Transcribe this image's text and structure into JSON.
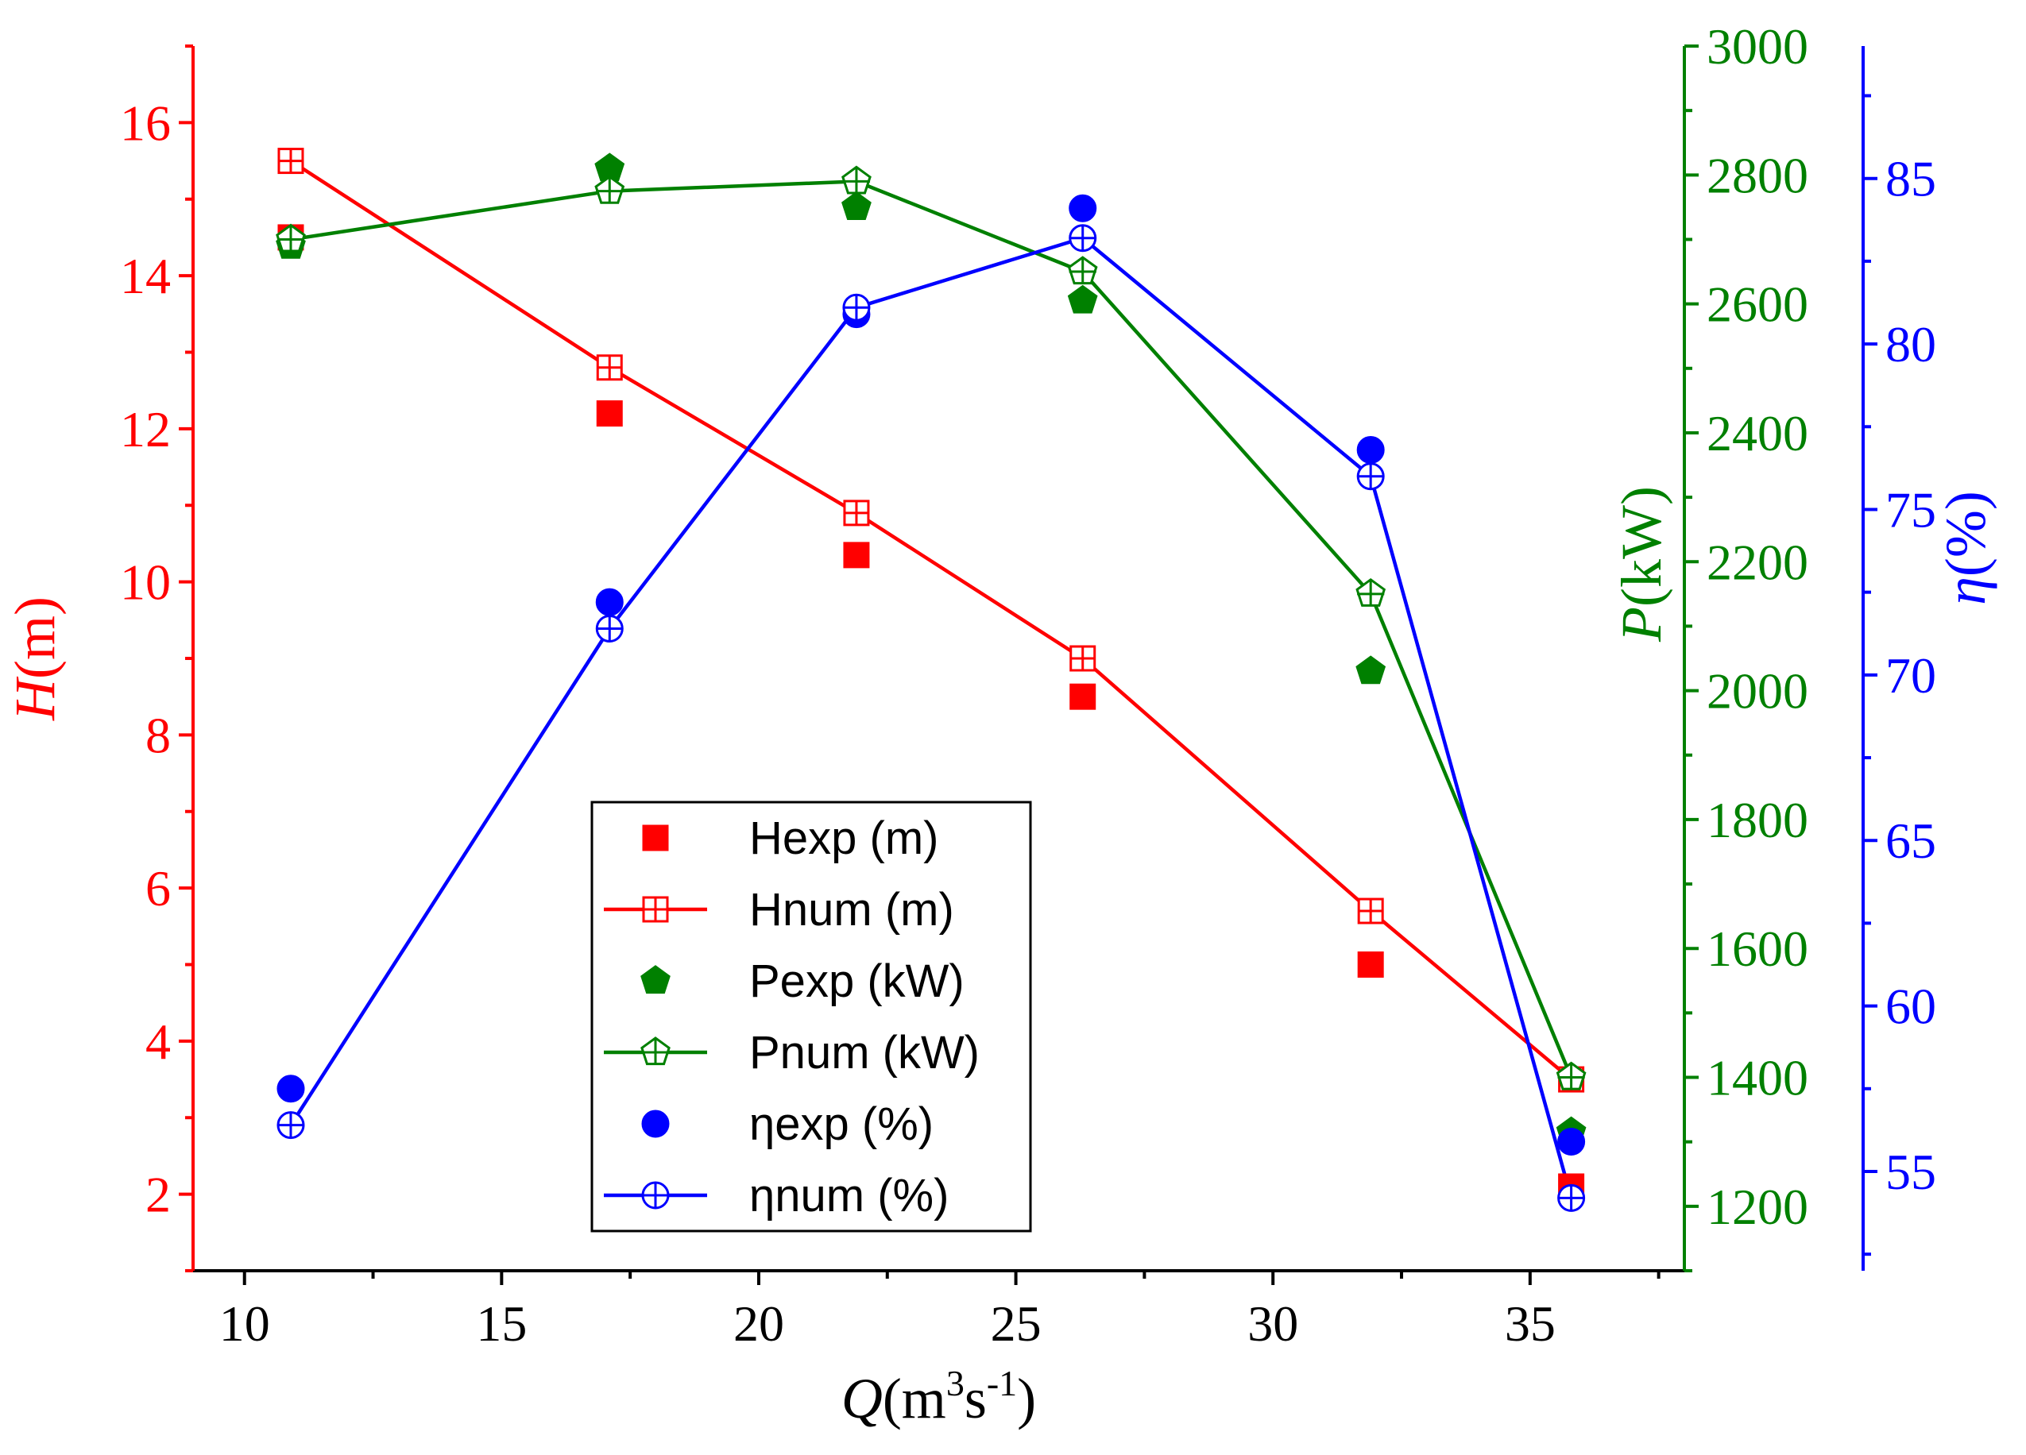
{
  "colors": {
    "H": "#ff0000",
    "P": "#008000",
    "eta": "#0000ff",
    "axis_x": "#000000"
  },
  "chart_data": {
    "type": "line",
    "x": [
      10.9,
      17.1,
      21.9,
      26.3,
      31.9,
      35.8
    ],
    "xlabel": {
      "italic": "Q",
      "rest": "(m",
      "sup1": "3",
      "mid": "s",
      "sup2": "-1",
      "end": ")"
    },
    "xlim": [
      9,
      38
    ],
    "xticks": [
      10,
      15,
      20,
      25,
      30,
      35
    ],
    "axes": {
      "left": {
        "label_italic": "H",
        "label_rest": "(m)",
        "ylim": [
          1,
          17
        ],
        "ticks": [
          2,
          4,
          6,
          8,
          10,
          12,
          14,
          16
        ]
      },
      "right1": {
        "label_italic": "P",
        "label_rest": "(kW)",
        "ylim": [
          1100,
          3000
        ],
        "ticks": [
          1200,
          1400,
          1600,
          1800,
          2000,
          2200,
          2400,
          2600,
          2800,
          3000
        ]
      },
      "right2": {
        "label_italic": "η",
        "label_rest": "(%)",
        "ylim": [
          52,
          89
        ],
        "ticks": [
          55,
          60,
          65,
          70,
          75,
          80,
          85
        ]
      }
    },
    "series": [
      {
        "name": "Hexp (m)",
        "axis": "left",
        "marker": "square",
        "filled": true,
        "line": false,
        "color_key": "H",
        "values": [
          14.5,
          12.2,
          10.35,
          8.5,
          5.0,
          2.1
        ]
      },
      {
        "name": "Hnum (m)",
        "axis": "left",
        "marker": "square",
        "filled": false,
        "line": true,
        "color_key": "H",
        "values": [
          15.5,
          12.8,
          10.9,
          9.0,
          5.7,
          3.5
        ]
      },
      {
        "name": "Pexp (kW)",
        "axis": "right1",
        "marker": "pentagon",
        "filled": true,
        "line": false,
        "color_key": "P",
        "values": [
          2690,
          2810,
          2750,
          2605,
          2030,
          1315
        ]
      },
      {
        "name": "Pnum (kW)",
        "axis": "right1",
        "marker": "pentagon",
        "filled": false,
        "line": true,
        "color_key": "P",
        "values": [
          2700,
          2775,
          2790,
          2650,
          2150,
          1400
        ]
      },
      {
        "name": "ηexp (%)",
        "axis": "right2",
        "marker": "circle",
        "filled": true,
        "line": false,
        "color_key": "eta",
        "values": [
          57.5,
          72.2,
          80.9,
          84.1,
          76.8,
          55.9
        ]
      },
      {
        "name": "ηnum (%)",
        "axis": "right2",
        "marker": "circle",
        "filled": false,
        "line": true,
        "color_key": "eta",
        "values": [
          56.4,
          71.4,
          81.1,
          83.2,
          76.0,
          54.2
        ]
      }
    ],
    "legend_position": "bottom-center-left",
    "grid": false
  }
}
